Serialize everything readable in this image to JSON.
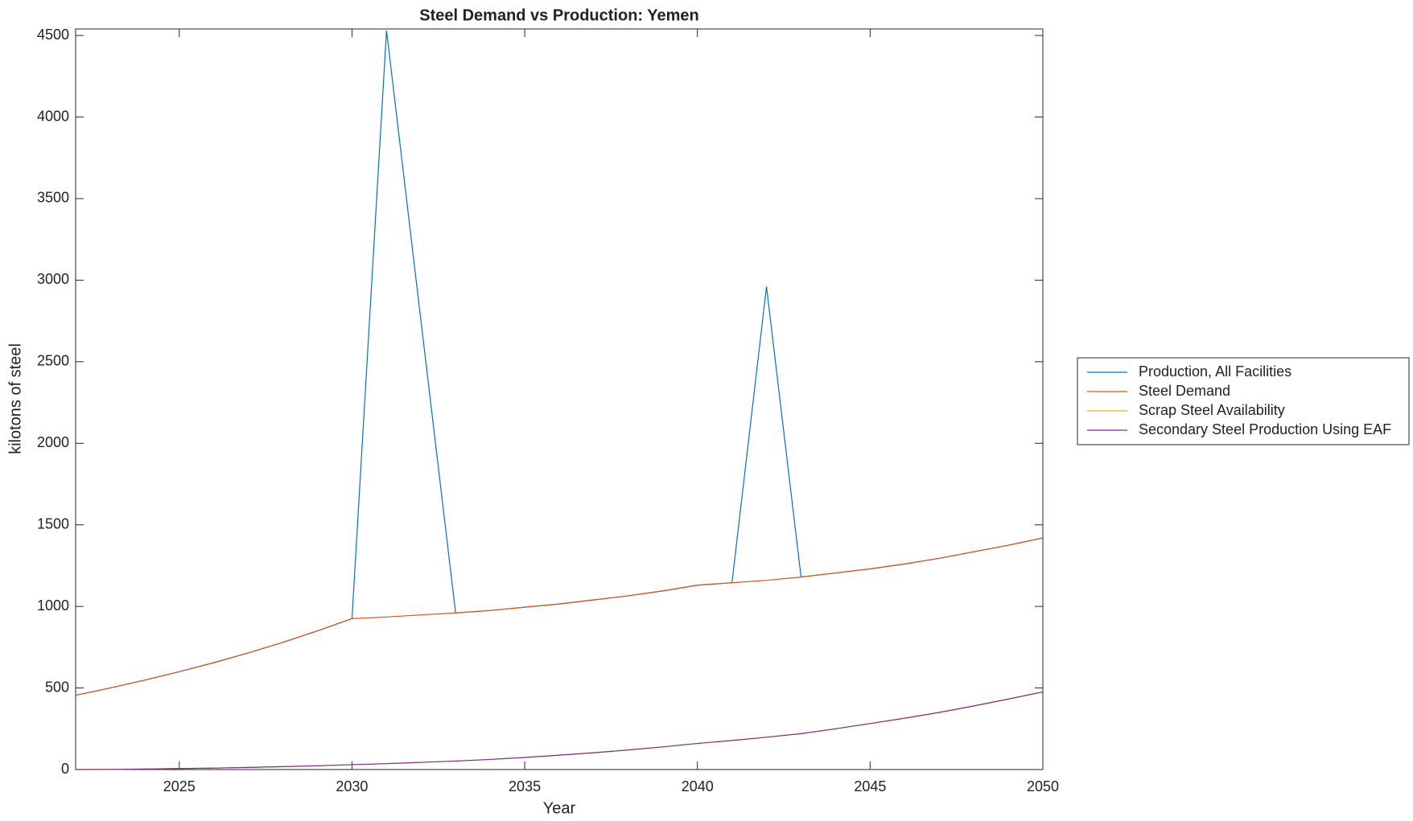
{
  "chart_data": {
    "type": "line",
    "title": "Steel Demand vs Production: Yemen",
    "x_label": "Year",
    "y_label": "kilotons of steel",
    "x": [
      2022,
      2023,
      2024,
      2025,
      2026,
      2027,
      2028,
      2029,
      2030,
      2031,
      2032,
      2033,
      2034,
      2035,
      2036,
      2037,
      2038,
      2039,
      2040,
      2041,
      2042,
      2043,
      2044,
      2045,
      2046,
      2047,
      2048,
      2049,
      2050
    ],
    "series": [
      {
        "name": "Production, All Facilities",
        "color": "#0072bd",
        "values": [
          455,
          500,
          548,
          600,
          655,
          715,
          780,
          850,
          925,
          4530,
          2745,
          960,
          975,
          995,
          1015,
          1040,
          1065,
          1095,
          1130,
          1145,
          2960,
          1180,
          1205,
          1230,
          1260,
          1295,
          1335,
          1375,
          1420
        ]
      },
      {
        "name": "Steel Demand",
        "color": "#d95319",
        "values": [
          455,
          500,
          548,
          600,
          655,
          715,
          780,
          850,
          925,
          935,
          948,
          960,
          975,
          995,
          1015,
          1040,
          1065,
          1095,
          1130,
          1145,
          1160,
          1180,
          1205,
          1230,
          1260,
          1295,
          1335,
          1375,
          1420
        ]
      },
      {
        "name": "Scrap Steel Availability",
        "color": "#edb120",
        "values": [
          0,
          1,
          3,
          6,
          9,
          13,
          18,
          23,
          30,
          36,
          44,
          52,
          62,
          74,
          88,
          103,
          120,
          139,
          160,
          178,
          198,
          220,
          250,
          282,
          315,
          350,
          390,
          432,
          476
        ]
      },
      {
        "name": "Secondary Steel Production Using EAF",
        "color": "#7e2f8e",
        "values": [
          0,
          1,
          3,
          6,
          9,
          13,
          18,
          23,
          30,
          36,
          44,
          52,
          62,
          74,
          88,
          103,
          120,
          139,
          160,
          178,
          198,
          220,
          250,
          282,
          315,
          350,
          390,
          432,
          476
        ]
      }
    ],
    "xlim": [
      2022,
      2050
    ],
    "xticks": [
      2025,
      2030,
      2035,
      2040,
      2045,
      2050
    ],
    "ylim": [
      0,
      4540
    ],
    "yticks": [
      0,
      500,
      1000,
      1500,
      2000,
      2500,
      3000,
      3500,
      4000,
      4500
    ],
    "legend": "east"
  }
}
